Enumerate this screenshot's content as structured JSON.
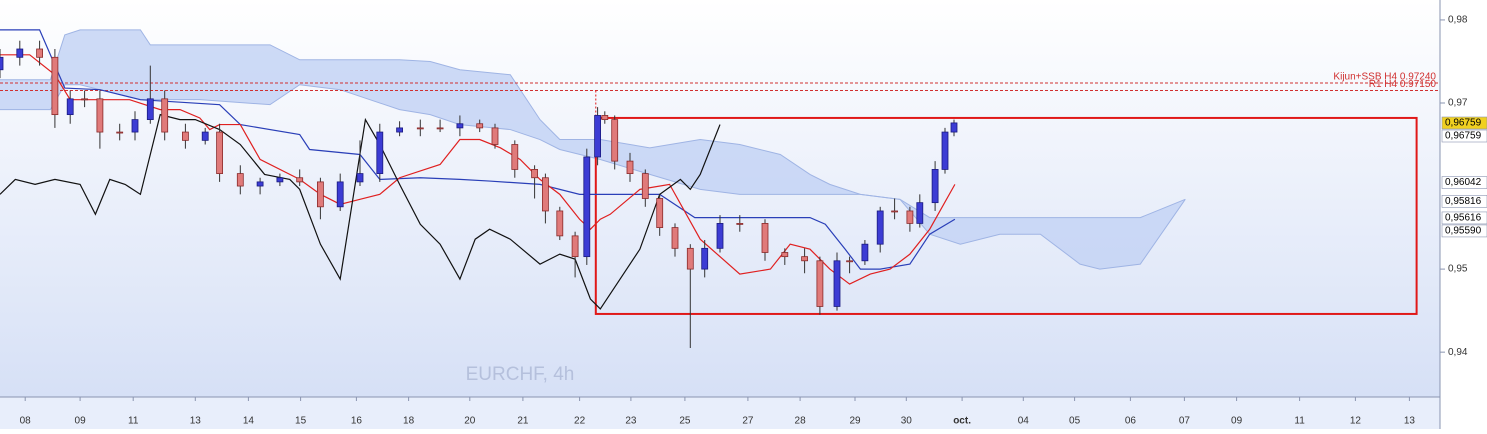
{
  "chart_data": {
    "type": "candlestick",
    "watermark": "EURCHF, 4h",
    "xlim": [
      0,
      160
    ],
    "ylim": [
      0.9346,
      0.9824
    ],
    "yticks": [
      {
        "value": 0.98,
        "label": "0,98"
      },
      {
        "value": 0.97,
        "label": "0,97"
      },
      {
        "value": 0.95,
        "label": "0,95"
      },
      {
        "value": 0.94,
        "label": "0,94"
      }
    ],
    "xticks": [
      {
        "value": 2.8,
        "label": "08"
      },
      {
        "value": 8.9,
        "label": "09"
      },
      {
        "value": 14.8,
        "label": "11"
      },
      {
        "value": 21.7,
        "label": "13"
      },
      {
        "value": 27.6,
        "label": "14"
      },
      {
        "value": 33.4,
        "label": "15"
      },
      {
        "value": 39.6,
        "label": "16"
      },
      {
        "value": 45.4,
        "label": "18"
      },
      {
        "value": 52.2,
        "label": "20"
      },
      {
        "value": 58.1,
        "label": "21"
      },
      {
        "value": 64.4,
        "label": "22"
      },
      {
        "value": 70.1,
        "label": "23"
      },
      {
        "value": 76.1,
        "label": "25"
      },
      {
        "value": 83.1,
        "label": "27"
      },
      {
        "value": 88.9,
        "label": "28"
      },
      {
        "value": 95,
        "label": "29"
      },
      {
        "value": 100.7,
        "label": "30"
      },
      {
        "value": 106.9,
        "label": "oct."
      },
      {
        "value": 113.7,
        "label": "04"
      },
      {
        "value": 119.4,
        "label": "05"
      },
      {
        "value": 125.6,
        "label": "06"
      },
      {
        "value": 131.6,
        "label": "07"
      },
      {
        "value": 137.4,
        "label": "09"
      },
      {
        "value": 144.4,
        "label": "11"
      },
      {
        "value": 150.6,
        "label": "12"
      },
      {
        "value": 156.6,
        "label": "13"
      }
    ],
    "candles": {
      "up_color": "#3c3cd4",
      "down_color": "#e07a7a",
      "x": [
        0,
        2.2,
        4.4,
        6.1,
        7.8,
        9.4,
        11.1,
        13.3,
        15,
        16.7,
        18.3,
        20.6,
        22.8,
        24.4,
        26.7,
        28.9,
        31.1,
        33.3,
        35.6,
        37.8,
        40,
        42.2,
        44.4,
        46.7,
        48.9,
        51.1,
        53.3,
        55,
        57.2,
        59.4,
        60.6,
        62.2,
        63.9,
        65.2,
        66.4,
        67.2,
        68.3,
        70,
        71.7,
        73.3,
        75,
        76.7,
        78.3,
        80,
        82.2,
        85,
        87.2,
        89.4,
        91.1,
        93,
        94.4,
        96.1,
        97.8,
        99.4,
        101.1,
        102.2,
        103.9,
        105,
        106
      ],
      "open": [
        0.974,
        0.9755,
        0.9765,
        0.9755,
        0.9686,
        0.9705,
        0.9705,
        0.9665,
        0.9665,
        0.968,
        0.9705,
        0.9665,
        0.9655,
        0.9665,
        0.9615,
        0.96,
        0.9605,
        0.961,
        0.9605,
        0.9575,
        0.9605,
        0.9615,
        0.9665,
        0.967,
        0.967,
        0.967,
        0.9675,
        0.967,
        0.965,
        0.962,
        0.961,
        0.957,
        0.954,
        0.9515,
        0.9635,
        0.9685,
        0.968,
        0.963,
        0.9615,
        0.9585,
        0.955,
        0.9525,
        0.95,
        0.9525,
        0.9555,
        0.9555,
        0.952,
        0.9515,
        0.951,
        0.9455,
        0.951,
        0.951,
        0.953,
        0.957,
        0.957,
        0.9555,
        0.958,
        0.962,
        0.9665
      ],
      "high": [
        0.9765,
        0.9775,
        0.9775,
        0.9765,
        0.9715,
        0.9715,
        0.9715,
        0.9675,
        0.969,
        0.9745,
        0.9715,
        0.9675,
        0.967,
        0.9675,
        0.9625,
        0.961,
        0.9615,
        0.962,
        0.961,
        0.9615,
        0.9655,
        0.9675,
        0.9678,
        0.968,
        0.968,
        0.9685,
        0.968,
        0.9675,
        0.9655,
        0.9625,
        0.9615,
        0.9575,
        0.9545,
        0.9645,
        0.9695,
        0.969,
        0.9685,
        0.964,
        0.962,
        0.959,
        0.9555,
        0.953,
        0.9535,
        0.9565,
        0.9565,
        0.956,
        0.9525,
        0.9525,
        0.9515,
        0.952,
        0.9515,
        0.9535,
        0.9575,
        0.9585,
        0.9575,
        0.959,
        0.963,
        0.967,
        0.968
      ],
      "low": [
        0.973,
        0.9745,
        0.9745,
        0.967,
        0.9675,
        0.9695,
        0.9645,
        0.9655,
        0.9655,
        0.9675,
        0.9655,
        0.9645,
        0.965,
        0.9605,
        0.959,
        0.959,
        0.96,
        0.96,
        0.956,
        0.957,
        0.96,
        0.9605,
        0.966,
        0.966,
        0.9665,
        0.966,
        0.9665,
        0.9645,
        0.961,
        0.9585,
        0.9555,
        0.9535,
        0.949,
        0.9505,
        0.9625,
        0.9675,
        0.962,
        0.9605,
        0.9575,
        0.954,
        0.9515,
        0.9405,
        0.949,
        0.952,
        0.9545,
        0.951,
        0.9505,
        0.9495,
        0.9445,
        0.945,
        0.9495,
        0.9505,
        0.952,
        0.956,
        0.9545,
        0.955,
        0.957,
        0.9615,
        0.966
      ],
      "close": [
        0.9755,
        0.9765,
        0.9755,
        0.9686,
        0.9705,
        0.9705,
        0.9665,
        0.9665,
        0.968,
        0.9705,
        0.9665,
        0.9655,
        0.9665,
        0.9615,
        0.96,
        0.9605,
        0.961,
        0.9605,
        0.9575,
        0.9605,
        0.9615,
        0.9665,
        0.967,
        0.967,
        0.967,
        0.9675,
        0.967,
        0.965,
        0.962,
        0.961,
        0.957,
        0.954,
        0.9515,
        0.9635,
        0.9685,
        0.968,
        0.963,
        0.9615,
        0.9585,
        0.955,
        0.9525,
        0.95,
        0.9525,
        0.9555,
        0.9555,
        0.952,
        0.9515,
        0.951,
        0.9455,
        0.951,
        0.951,
        0.953,
        0.957,
        0.957,
        0.9555,
        0.958,
        0.962,
        0.9665,
        0.9676
      ]
    },
    "cloud": {
      "color": "#c4d4f4",
      "edge": "#9fb4e4",
      "x": [
        0,
        5.6,
        7.2,
        8.9,
        15.6,
        16.7,
        22.2,
        30,
        33.3,
        37.8,
        44.4,
        47.8,
        51.1,
        56.7,
        60,
        62.2,
        66.7,
        72.2,
        77.8,
        82.2,
        86.7,
        90,
        92.2,
        95.6,
        100,
        103.3,
        106.7,
        111.1,
        115.6,
        120,
        122.2,
        126.7,
        131.7
      ],
      "span_a": [
        0.9728,
        0.9728,
        0.9782,
        0.9788,
        0.9788,
        0.977,
        0.977,
        0.977,
        0.9752,
        0.9752,
        0.9752,
        0.975,
        0.974,
        0.9734,
        0.968,
        0.9656,
        0.9656,
        0.9646,
        0.9656,
        0.965,
        0.9638,
        0.9614,
        0.9602,
        0.959,
        0.9584,
        0.9562,
        0.9562,
        0.9562,
        0.9562,
        0.9562,
        0.9562,
        0.9562,
        0.9584
      ],
      "span_b": [
        0.9692,
        0.9692,
        0.9722,
        0.9722,
        0.9704,
        0.9704,
        0.9704,
        0.9698,
        0.9722,
        0.9716,
        0.9692,
        0.9686,
        0.9674,
        0.9668,
        0.9656,
        0.9644,
        0.9632,
        0.9614,
        0.9596,
        0.959,
        0.959,
        0.959,
        0.959,
        0.959,
        0.9584,
        0.9542,
        0.953,
        0.9542,
        0.9542,
        0.9506,
        0.95,
        0.9506,
        0.9584
      ]
    },
    "series": [
      {
        "color": "#2a3fb8",
        "x": [
          0,
          4.4,
          7.2,
          11.1,
          15.6,
          24.4,
          26.7,
          33.3,
          34.4,
          40,
          42.2,
          46.7,
          51.1,
          54.4,
          60,
          64.4,
          66.7,
          71.1,
          73.3,
          77.2,
          85.6,
          90,
          91.7,
          93.9,
          95.6,
          97.8,
          101.1,
          103.3,
          106.1
        ],
        "values": [
          0.9788,
          0.9788,
          0.9718,
          0.9716,
          0.9704,
          0.9698,
          0.9674,
          0.9662,
          0.9644,
          0.9638,
          0.9608,
          0.961,
          0.9608,
          0.9606,
          0.9602,
          0.959,
          0.959,
          0.959,
          0.959,
          0.9562,
          0.9562,
          0.9562,
          0.9554,
          0.9524,
          0.95,
          0.95,
          0.9506,
          0.9542,
          0.956
        ]
      },
      {
        "color": "#e02020",
        "x": [
          0,
          3.3,
          6.1,
          7.8,
          11.1,
          14.4,
          17.8,
          20,
          22.2,
          23.3,
          24.4,
          26.7,
          28.9,
          33.3,
          35.6,
          37.8,
          40,
          42.2,
          44.4,
          48.9,
          51.1,
          53.3,
          55.6,
          57.8,
          60,
          62.2,
          64.4,
          65.6,
          66.7,
          67.8,
          71.1,
          74.4,
          77.8,
          82.2,
          85.6,
          87.8,
          90,
          92.2,
          94.4,
          96.7,
          98.9,
          101.1,
          103.3,
          106.1
        ],
        "values": [
          0.9758,
          0.9758,
          0.9734,
          0.9704,
          0.9704,
          0.9704,
          0.9692,
          0.9692,
          0.9682,
          0.9668,
          0.9674,
          0.9674,
          0.9632,
          0.9608,
          0.959,
          0.9578,
          0.9584,
          0.959,
          0.961,
          0.9626,
          0.9656,
          0.9656,
          0.9646,
          0.9632,
          0.9608,
          0.959,
          0.956,
          0.9548,
          0.956,
          0.9566,
          0.9596,
          0.9602,
          0.9536,
          0.9494,
          0.95,
          0.953,
          0.9524,
          0.95,
          0.9482,
          0.9494,
          0.95,
          0.9518,
          0.9548,
          0.9602
        ]
      },
      {
        "color": "#111111",
        "x": [
          0,
          1.7,
          3.9,
          6.1,
          8.9,
          10.6,
          12.2,
          13.9,
          15.6,
          17.8,
          20,
          21.7,
          24.4,
          26.7,
          29.4,
          32.2,
          33.3,
          35.6,
          37.8,
          40.6,
          42.2,
          44.4,
          46.7,
          48.9,
          51.1,
          52.8,
          54.4,
          56.7,
          60,
          62.2,
          63.9,
          65.6,
          66.7,
          68.9,
          71.1,
          73.3,
          75.6,
          76.7,
          77.8,
          80
        ],
        "values": [
          0.959,
          0.9608,
          0.9602,
          0.9608,
          0.9602,
          0.9566,
          0.9608,
          0.9602,
          0.959,
          0.9686,
          0.968,
          0.968,
          0.9668,
          0.965,
          0.9614,
          0.9608,
          0.9596,
          0.953,
          0.9488,
          0.968,
          0.965,
          0.9602,
          0.9554,
          0.953,
          0.9488,
          0.9536,
          0.9548,
          0.9536,
          0.9506,
          0.9518,
          0.9512,
          0.9464,
          0.9452,
          0.9488,
          0.9524,
          0.959,
          0.9608,
          0.9596,
          0.9614,
          0.9674
        ]
      }
    ],
    "levels": [
      {
        "value": 0.9724,
        "label": "Kijun+SSB H4 0.97240",
        "color": "#d03030"
      },
      {
        "value": 0.9715,
        "label": "R1 H4 0.97150",
        "color": "#d03030"
      }
    ],
    "zone": {
      "x_start": 66.2,
      "x_end": 157.4,
      "top": 0.9682,
      "bottom": 0.9446,
      "color": "#e01818"
    },
    "price_labels": [
      {
        "value": 0.96759,
        "label": "0,96759",
        "color": "#f0d020"
      },
      {
        "value": 0.96759,
        "label": "0,96759",
        "color": "#ffffff"
      },
      {
        "value": 0.96042,
        "label": "0,96042",
        "color": "#ffffff"
      },
      {
        "value": 0.95816,
        "label": "0,95816",
        "color": "#ffffff"
      },
      {
        "value": 0.95616,
        "label": "0,95616",
        "color": "#ffffff"
      },
      {
        "value": 0.9559,
        "label": "0,95590",
        "color": "#ffffff"
      }
    ]
  }
}
